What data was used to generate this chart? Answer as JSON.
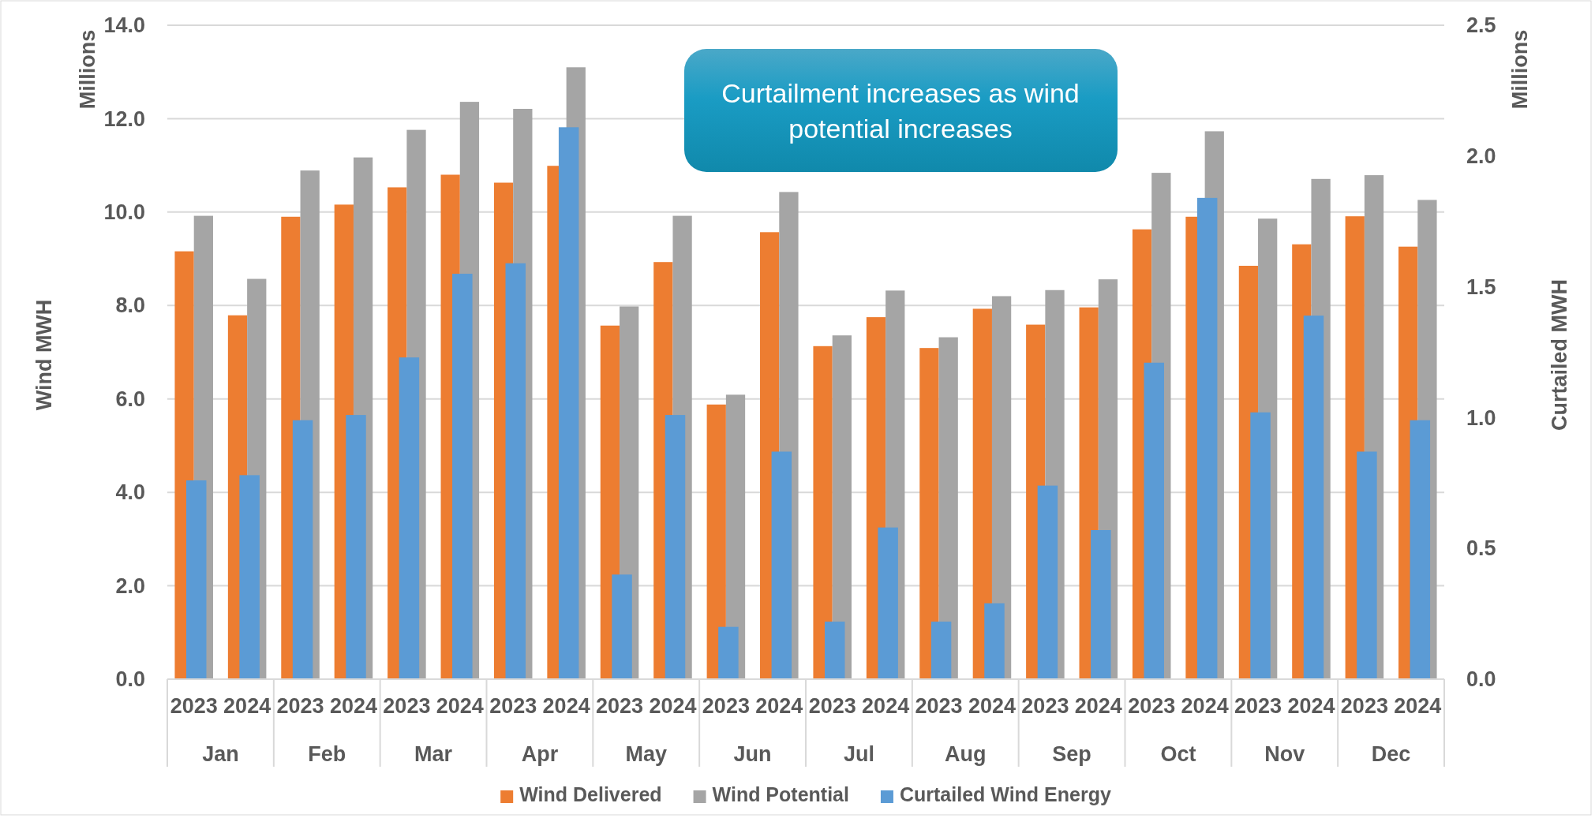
{
  "chart_data": {
    "type": "bar",
    "ylabel": "Wind MWH",
    "y2label": "Curtailed MWH",
    "annotations": [
      "Curtailment increases as wind potential increases",
      "Millions",
      "Millions",
      "Jan",
      "Feb",
      "Mar",
      "Apr",
      "May",
      "Jun",
      "Jul",
      "Aug",
      "Sep",
      "Oct",
      "Nov",
      "Dec"
    ],
    "categories": [
      "2023",
      "2024",
      "2023",
      "2024",
      "2023",
      "2024",
      "2023",
      "2024",
      "2023",
      "2024",
      "2023",
      "2024",
      "2023",
      "2024",
      "2023",
      "2024",
      "2023",
      "2024",
      "2023",
      "2024",
      "2023",
      "2024",
      "2023",
      "2024"
    ],
    "series": [
      {
        "name": "Wind Delivered",
        "color": "#ed7d31",
        "values": [
          9.16,
          7.79,
          9.9,
          10.16,
          10.53,
          10.8,
          10.63,
          10.99,
          7.57,
          8.93,
          5.88,
          9.57,
          7.13,
          7.75,
          7.09,
          7.93,
          7.59,
          7.96,
          9.63,
          9.9,
          8.85,
          9.31,
          9.91,
          9.26
        ]
      },
      {
        "name": "Wind Potential",
        "color": "#a5a5a5",
        "values": [
          9.92,
          8.57,
          10.89,
          11.17,
          11.76,
          12.36,
          12.21,
          13.1,
          7.98,
          9.92,
          6.09,
          10.43,
          7.36,
          8.32,
          7.32,
          8.2,
          8.33,
          8.56,
          10.84,
          11.73,
          9.86,
          10.71,
          10.79,
          10.26
        ]
      },
      {
        "name": "Curtailed Wind Energy",
        "color": "#5b9bd5",
        "axis": "y2",
        "values": [
          0.76,
          0.78,
          0.99,
          1.01,
          1.23,
          1.55,
          1.59,
          2.11,
          0.4,
          1.01,
          0.2,
          0.87,
          0.22,
          0.58,
          0.22,
          0.29,
          0.74,
          0.57,
          1.21,
          1.84,
          1.02,
          1.39,
          0.87,
          0.99
        ]
      }
    ],
    "ylim": [
      0,
      14
    ],
    "yticks": [
      {
        "value": 0,
        "label": "0.0"
      },
      {
        "value": 2,
        "label": "2.0"
      },
      {
        "value": 4,
        "label": "4.0"
      },
      {
        "value": 6,
        "label": "6.0"
      },
      {
        "value": 8,
        "label": "8.0"
      },
      {
        "value": 10,
        "label": "10.0"
      },
      {
        "value": 12,
        "label": "12.0"
      },
      {
        "value": 14,
        "label": "14.0"
      }
    ],
    "y2lim": [
      0,
      2.5
    ],
    "y2ticks": [
      {
        "value": 0,
        "label": "0.0"
      },
      {
        "value": 0.5,
        "label": "0.5"
      },
      {
        "value": 1,
        "label": "1.0"
      },
      {
        "value": 1.5,
        "label": "1.5"
      },
      {
        "value": 2,
        "label": "2.0"
      },
      {
        "value": 2.5,
        "label": "2.5"
      }
    ],
    "grid": "y",
    "legend": "bottom"
  }
}
